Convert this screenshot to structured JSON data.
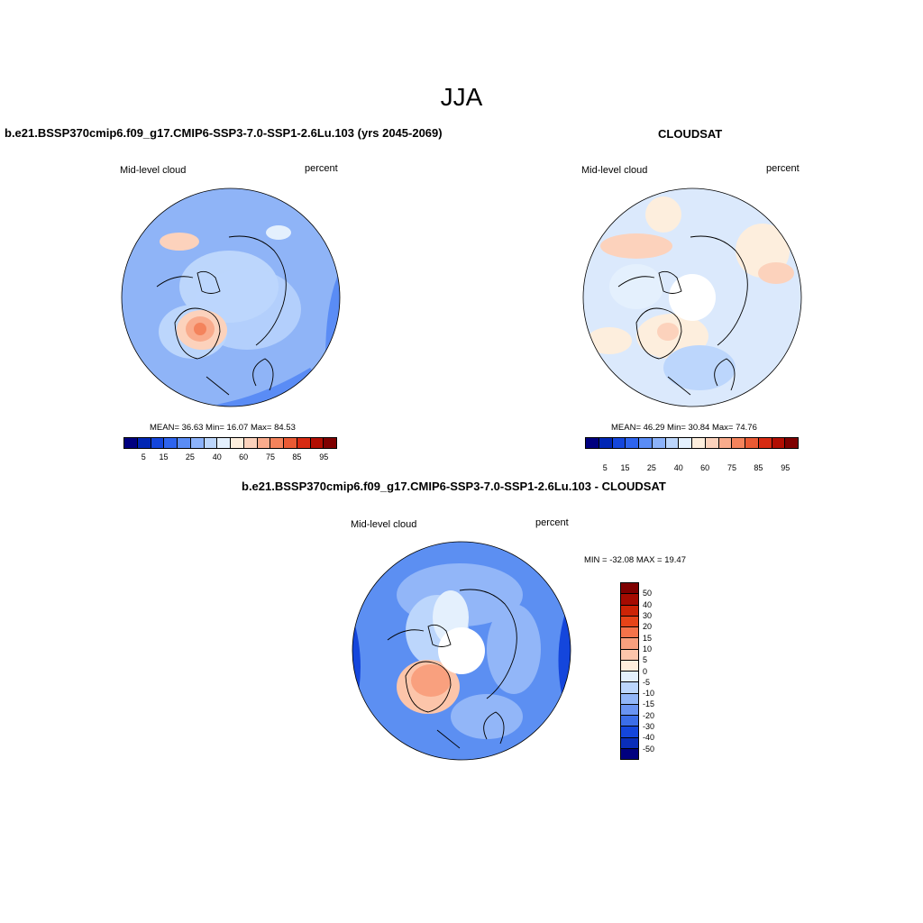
{
  "season": "JJA",
  "panels": [
    {
      "title": "b.e21.BSSP370cmip6.f09_g17.CMIP6-SSP3-7.0-SSP1-2.6Lu.103 (yrs 2045-2069)",
      "variable": "Mid-level cloud",
      "units": "percent",
      "stats": "MEAN=  36.63  Min=  16.07  Max=  84.53",
      "colorbar_labels": [
        "5",
        "15",
        "25",
        "40",
        "60",
        "75",
        "85",
        "95"
      ]
    },
    {
      "title": "CLOUDSAT",
      "variable": "Mid-level cloud",
      "units": "percent",
      "stats": "MEAN=  46.29  Min=  30.84  Max=  74.76",
      "colorbar_labels": [
        "5",
        "15",
        "25",
        "40",
        "60",
        "75",
        "85",
        "95"
      ]
    },
    {
      "title": "b.e21.BSSP370cmip6.f09_g17.CMIP6-SSP3-7.0-SSP1-2.6Lu.103 - CLOUDSAT",
      "variable": "Mid-level cloud",
      "units": "percent",
      "stats": "MIN = -32.08 MAX =  19.47",
      "colorbar_labels": [
        "50",
        "40",
        "30",
        "20",
        "15",
        "10",
        "5",
        "0",
        "-5",
        "-10",
        "-15",
        "-20",
        "-30",
        "-40",
        "-50"
      ]
    }
  ],
  "colors": {
    "abs_scale": [
      "#00007f",
      "#0026b4",
      "#1446dc",
      "#2e64ee",
      "#5a8cf5",
      "#8cb2fa",
      "#bcd6fc",
      "#e4f0fd",
      "#fdeedd",
      "#fcd2bc",
      "#f9ab8c",
      "#f4835c",
      "#ea5a34",
      "#d72a12",
      "#b20e02",
      "#7f0000"
    ],
    "diff_scale": [
      "#7f0000",
      "#a50b01",
      "#cc2406",
      "#e64418",
      "#f4734a",
      "#f9a07e",
      "#fcc5aa",
      "#feeede",
      "#e4f0fd",
      "#bcd6fc",
      "#92b6f8",
      "#6a94f2",
      "#3c6ee8",
      "#1446dc",
      "#0a2eba",
      "#00007f"
    ],
    "map_base_model": "#8fb4f7",
    "map_base_obs": "#dbe9fc",
    "map_base_diff": "#5c8ff2"
  }
}
